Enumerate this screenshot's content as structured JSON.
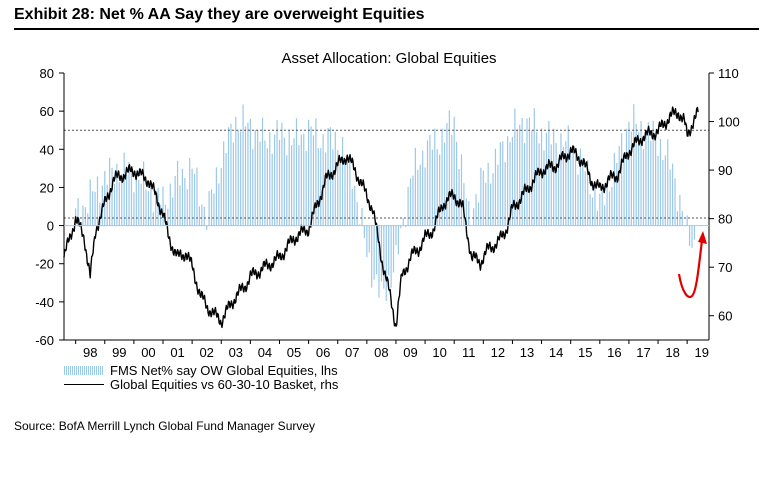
{
  "exhibit_title": "Exhibit 28: Net % AA Say they are overweight Equities",
  "source": "Source: BofA Merrill Lynch Global Fund Manager Survey",
  "chart_data": {
    "type": "bar+line",
    "title": "Asset Allocation: Global Equities",
    "categories": [
      "98",
      "99",
      "00",
      "01",
      "02",
      "03",
      "04",
      "05",
      "06",
      "07",
      "08",
      "09",
      "10",
      "11",
      "12",
      "13",
      "14",
      "15",
      "16",
      "17",
      "18",
      "19"
    ],
    "ylim_left": [
      -60,
      80
    ],
    "yticks_left": [
      80,
      60,
      40,
      20,
      0,
      -20,
      -40,
      -60
    ],
    "ylim_right": [
      55,
      110
    ],
    "yticks_right": [
      110,
      100,
      90,
      80,
      70,
      60
    ],
    "grid": false,
    "reference_lines": [
      {
        "axis": "left",
        "value": 50,
        "style": "dotted"
      },
      {
        "axis": "left",
        "value": 4,
        "style": "dotted"
      }
    ],
    "series": [
      {
        "name": "FMS Net% say OW Global Equities, lhs",
        "axis": "left",
        "kind": "bar",
        "color": "#9cc8ea",
        "x": [
          1998.0,
          1998.5,
          1999.0,
          1999.5,
          2000.0,
          2000.5,
          2001.0,
          2001.5,
          2002.0,
          2002.5,
          2003.0,
          2003.5,
          2004.0,
          2004.5,
          2005.0,
          2005.5,
          2006.0,
          2006.5,
          2007.0,
          2007.5,
          2008.0,
          2008.5,
          2009.0,
          2009.5,
          2010.0,
          2010.5,
          2011.0,
          2011.5,
          2012.0,
          2012.5,
          2013.0,
          2013.5,
          2014.0,
          2014.5,
          2015.0,
          2015.5,
          2016.0,
          2016.5,
          2017.0,
          2017.5,
          2018.0,
          2018.5,
          2019.0,
          2019.3
        ],
        "values": [
          5,
          15,
          25,
          30,
          28,
          20,
          12,
          25,
          30,
          5,
          35,
          55,
          52,
          45,
          48,
          45,
          50,
          45,
          45,
          28,
          -15,
          -38,
          -20,
          25,
          40,
          45,
          55,
          5,
          25,
          35,
          50,
          55,
          48,
          45,
          42,
          30,
          10,
          30,
          55,
          50,
          45,
          30,
          -5,
          -10
        ]
      },
      {
        "name": "Global Equities vs 60-30-10 Basket, rhs",
        "axis": "right",
        "kind": "line",
        "color": "#000000",
        "x": [
          1997.6,
          1997.8,
          1998.0,
          1998.3,
          1998.5,
          1998.7,
          1999.0,
          1999.3,
          1999.6,
          2000.0,
          2000.2,
          2000.5,
          2000.8,
          2001.0,
          2001.2,
          2001.5,
          2001.8,
          2002.0,
          2002.3,
          2002.5,
          2002.8,
          2003.0,
          2003.2,
          2003.5,
          2003.8,
          2004.0,
          2004.5,
          2005.0,
          2005.5,
          2006.0,
          2006.3,
          2006.6,
          2007.0,
          2007.3,
          2007.6,
          2007.9,
          2008.2,
          2008.5,
          2008.8,
          2009.0,
          2009.2,
          2009.5,
          2009.8,
          2010.0,
          2010.3,
          2010.6,
          2011.0,
          2011.3,
          2011.6,
          2011.9,
          2012.2,
          2012.5,
          2012.8,
          2013.0,
          2013.5,
          2014.0,
          2014.5,
          2015.0,
          2015.4,
          2015.7,
          2016.0,
          2016.3,
          2016.6,
          2017.0,
          2017.5,
          2018.0,
          2018.4,
          2018.7,
          2018.9,
          2019.0,
          2019.2,
          2019.4
        ],
        "values": [
          72,
          76,
          80,
          76,
          68,
          78,
          83,
          88,
          89,
          90,
          89,
          88,
          84,
          81,
          76,
          72,
          73,
          70,
          64,
          62,
          60,
          59,
          61,
          64,
          66,
          68,
          70,
          72,
          76,
          78,
          83,
          88,
          91,
          93,
          90,
          86,
          82,
          72,
          64,
          58,
          68,
          72,
          74,
          76,
          78,
          83,
          85,
          82,
          72,
          71,
          74,
          75,
          78,
          82,
          86,
          90,
          91,
          94,
          92,
          88,
          86,
          88,
          89,
          94,
          97,
          98,
          101,
          102,
          100,
          97,
          100,
          102
        ]
      }
    ]
  }
}
